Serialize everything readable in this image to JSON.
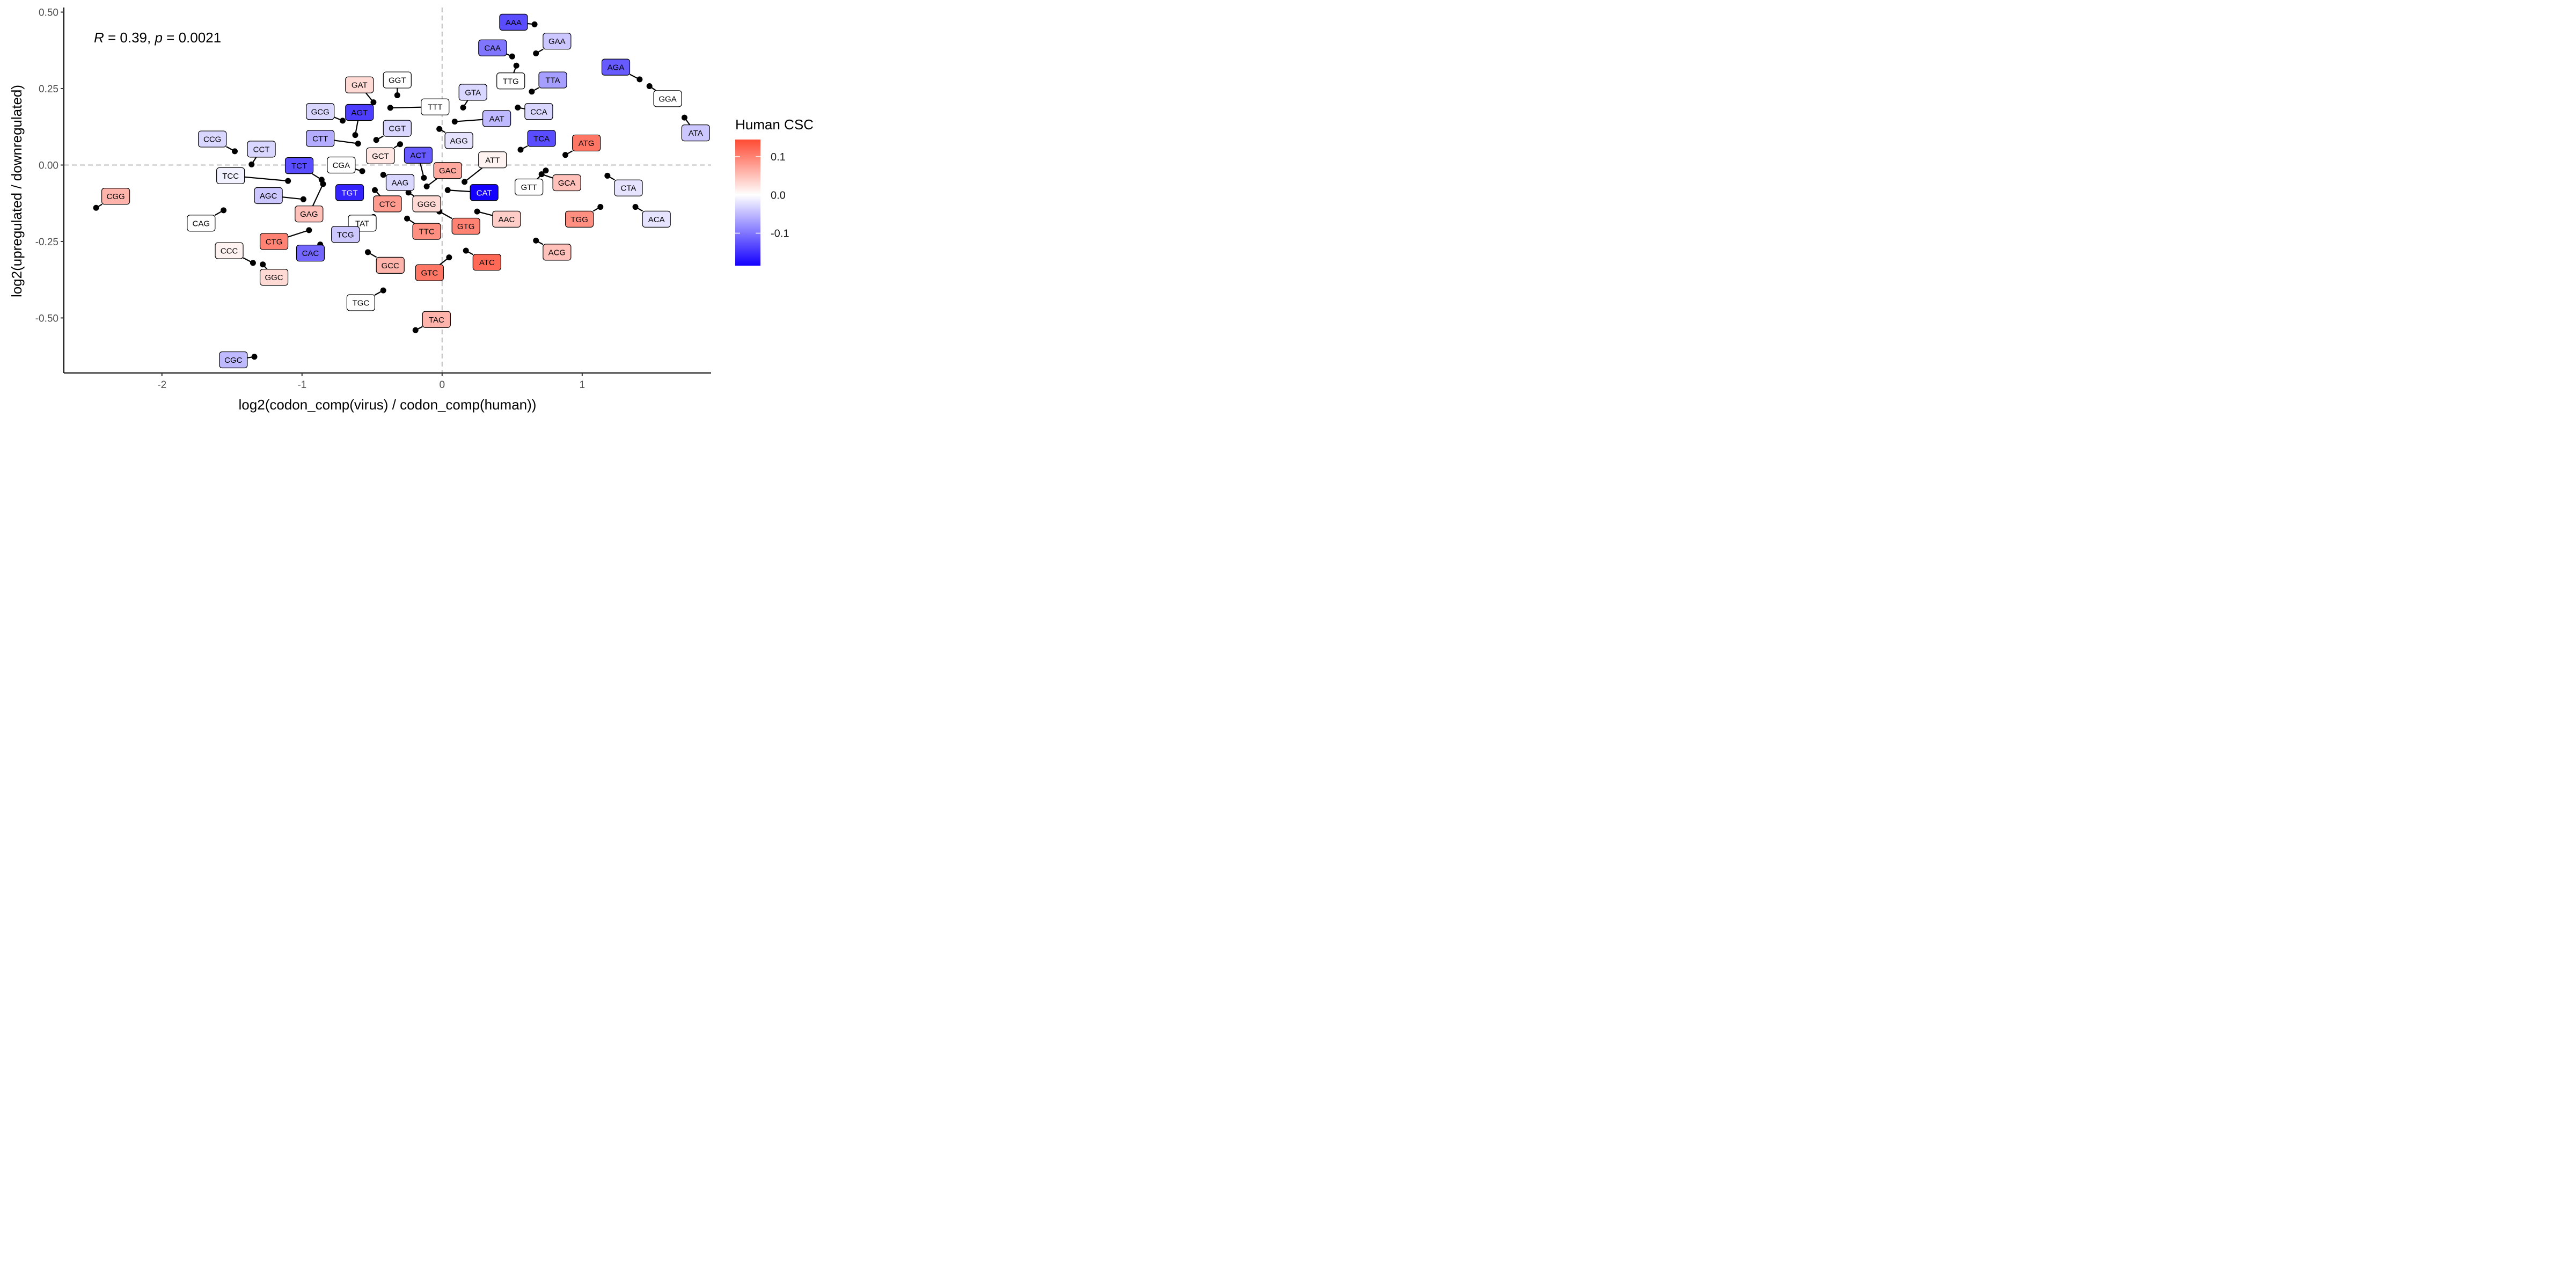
{
  "chart_data": {
    "type": "scatter",
    "xlabel": "log2(codon_comp(virus) / codon_comp(human))",
    "ylabel": "log2(upregulated / downregulated)",
    "annotation": {
      "R_symbol": "R",
      "R_text": " = 0.39, ",
      "p_symbol": "p",
      "p_text": " = 0.0021"
    },
    "xlim": [
      -2.7,
      1.92
    ],
    "ylim": [
      -0.68,
      0.515
    ],
    "x_ticks": [
      {
        "value": -2,
        "label": "-2"
      },
      {
        "value": -1,
        "label": "-1"
      },
      {
        "value": 0,
        "label": "0"
      },
      {
        "value": 1,
        "label": "1"
      }
    ],
    "y_ticks": [
      {
        "value": 0.5,
        "label": "0.50"
      },
      {
        "value": 0.25,
        "label": "0.25"
      },
      {
        "value": 0.0,
        "label": "0.00"
      },
      {
        "value": -0.25,
        "label": "-0.25"
      },
      {
        "value": -0.5,
        "label": "-0.50"
      }
    ],
    "reference_lines": {
      "x": 0,
      "y": 0,
      "style": "dashed"
    },
    "grid": false,
    "legend": {
      "title": "Human CSC",
      "position": "right",
      "colors": {
        "low": "#1400FF",
        "mid": "#FFFFFF",
        "high": "#FF4A33"
      },
      "domain": [
        -0.185,
        0.145
      ],
      "ticks": [
        {
          "value": 0.1,
          "label": "0.1"
        },
        {
          "value": 0.0,
          "label": "0.0"
        },
        {
          "value": -0.1,
          "label": "-0.1"
        }
      ]
    },
    "points": [
      {
        "codon": "AAA",
        "x": 0.66,
        "y": 0.46,
        "csc": -0.13,
        "lx": 0.51,
        "ly": 0.467
      },
      {
        "codon": "GAA",
        "x": 0.67,
        "y": 0.365,
        "csc": -0.04,
        "lx": 0.82,
        "ly": 0.405
      },
      {
        "codon": "CAA",
        "x": 0.5,
        "y": 0.355,
        "csc": -0.1,
        "lx": 0.36,
        "ly": 0.383
      },
      {
        "codon": "TTG",
        "x": 0.53,
        "y": 0.325,
        "csc": 0.0,
        "lx": 0.49,
        "ly": 0.275
      },
      {
        "codon": "TTA",
        "x": 0.64,
        "y": 0.24,
        "csc": -0.07,
        "lx": 0.79,
        "ly": 0.278
      },
      {
        "codon": "AGA",
        "x": 1.41,
        "y": 0.28,
        "csc": -0.12,
        "lx": 1.24,
        "ly": 0.32
      },
      {
        "codon": "GGA",
        "x": 1.48,
        "y": 0.258,
        "csc": 0.0,
        "lx": 1.61,
        "ly": 0.217
      },
      {
        "codon": "ATA",
        "x": 1.73,
        "y": 0.155,
        "csc": -0.04,
        "lx": 1.81,
        "ly": 0.105
      },
      {
        "codon": "GTA",
        "x": 0.15,
        "y": 0.188,
        "csc": -0.03,
        "lx": 0.22,
        "ly": 0.238
      },
      {
        "codon": "CCA",
        "x": 0.54,
        "y": 0.188,
        "csc": -0.03,
        "lx": 0.69,
        "ly": 0.175
      },
      {
        "codon": "AAT",
        "x": 0.09,
        "y": 0.142,
        "csc": -0.05,
        "lx": 0.39,
        "ly": 0.152
      },
      {
        "codon": "TCA",
        "x": 0.56,
        "y": 0.05,
        "csc": -0.13,
        "lx": 0.71,
        "ly": 0.087
      },
      {
        "codon": "ATG",
        "x": 0.88,
        "y": 0.033,
        "csc": 0.11,
        "lx": 1.03,
        "ly": 0.072
      },
      {
        "codon": "ATT",
        "x": 0.16,
        "y": -0.055,
        "csc": 0.01,
        "lx": 0.36,
        "ly": 0.017
      },
      {
        "codon": "GTT",
        "x": 0.74,
        "y": -0.018,
        "csc": 0.0,
        "lx": 0.62,
        "ly": -0.072
      },
      {
        "codon": "GCA",
        "x": 0.71,
        "y": -0.03,
        "csc": 0.05,
        "lx": 0.89,
        "ly": -0.058
      },
      {
        "codon": "CTA",
        "x": 1.18,
        "y": -0.035,
        "csc": -0.02,
        "lx": 1.33,
        "ly": -0.075
      },
      {
        "codon": "TGG",
        "x": 1.13,
        "y": -0.137,
        "csc": 0.09,
        "lx": 0.98,
        "ly": -0.177
      },
      {
        "codon": "ACA",
        "x": 1.38,
        "y": -0.137,
        "csc": -0.02,
        "lx": 1.53,
        "ly": -0.177
      },
      {
        "codon": "CAT",
        "x": 0.04,
        "y": -0.082,
        "csc": -0.185,
        "lx": 0.3,
        "ly": -0.09
      },
      {
        "codon": "AAC",
        "x": 0.25,
        "y": -0.152,
        "csc": 0.04,
        "lx": 0.46,
        "ly": -0.177
      },
      {
        "codon": "ACG",
        "x": 0.67,
        "y": -0.247,
        "csc": 0.05,
        "lx": 0.82,
        "ly": -0.285
      },
      {
        "codon": "ATC",
        "x": 0.17,
        "y": -0.28,
        "csc": 0.12,
        "lx": 0.32,
        "ly": -0.318
      },
      {
        "codon": "GTC",
        "x": 0.05,
        "y": -0.302,
        "csc": 0.11,
        "lx": -0.09,
        "ly": -0.352
      },
      {
        "codon": "TAC",
        "x": -0.19,
        "y": -0.54,
        "csc": 0.06,
        "lx": -0.04,
        "ly": -0.505
      },
      {
        "codon": "GAC",
        "x": -0.11,
        "y": -0.07,
        "csc": 0.07,
        "lx": 0.04,
        "ly": -0.018
      },
      {
        "codon": "ACT",
        "x": -0.13,
        "y": -0.042,
        "csc": -0.12,
        "lx": -0.17,
        "ly": 0.032
      },
      {
        "codon": "AGG",
        "x": -0.02,
        "y": 0.118,
        "csc": -0.02,
        "lx": 0.12,
        "ly": 0.08
      },
      {
        "codon": "TTT",
        "x": -0.37,
        "y": 0.187,
        "csc": 0.0,
        "lx": -0.05,
        "ly": 0.19
      },
      {
        "codon": "GGT",
        "x": -0.32,
        "y": 0.228,
        "csc": 0.0,
        "lx": -0.32,
        "ly": 0.278
      },
      {
        "codon": "CGT",
        "x": -0.47,
        "y": 0.082,
        "csc": -0.03,
        "lx": -0.32,
        "ly": 0.12
      },
      {
        "codon": "GCT",
        "x": -0.3,
        "y": 0.068,
        "csc": 0.02,
        "lx": -0.44,
        "ly": 0.03
      },
      {
        "codon": "GAT",
        "x": -0.49,
        "y": 0.205,
        "csc": 0.03,
        "lx": -0.59,
        "ly": 0.262
      },
      {
        "codon": "AGT",
        "x": -0.62,
        "y": 0.098,
        "csc": -0.14,
        "lx": -0.59,
        "ly": 0.172
      },
      {
        "codon": "GCG",
        "x": -0.71,
        "y": 0.145,
        "csc": -0.03,
        "lx": -0.87,
        "ly": 0.175
      },
      {
        "codon": "CTT",
        "x": -0.6,
        "y": 0.07,
        "csc": -0.06,
        "lx": -0.87,
        "ly": 0.087
      },
      {
        "codon": "CGA",
        "x": -0.57,
        "y": -0.02,
        "csc": 0.0,
        "lx": -0.72,
        "ly": 0.0
      },
      {
        "codon": "AAG",
        "x": -0.42,
        "y": -0.032,
        "csc": -0.03,
        "lx": -0.3,
        "ly": -0.057
      },
      {
        "codon": "GGG",
        "x": -0.24,
        "y": -0.09,
        "csc": 0.03,
        "lx": -0.11,
        "ly": -0.127
      },
      {
        "codon": "CTC",
        "x": -0.48,
        "y": -0.082,
        "csc": 0.08,
        "lx": -0.39,
        "ly": -0.127
      },
      {
        "codon": "TGT",
        "x": -0.66,
        "y": -0.09,
        "csc": -0.16,
        "lx": -0.66,
        "ly": -0.09
      },
      {
        "codon": "TTC",
        "x": -0.25,
        "y": -0.175,
        "csc": 0.09,
        "lx": -0.11,
        "ly": -0.217
      },
      {
        "codon": "GTG",
        "x": -0.02,
        "y": -0.152,
        "csc": 0.1,
        "lx": 0.17,
        "ly": -0.2
      },
      {
        "codon": "TAT",
        "x": -0.49,
        "y": -0.17,
        "csc": 0.0,
        "lx": -0.57,
        "ly": -0.19
      },
      {
        "codon": "TCG",
        "x": -0.61,
        "y": -0.24,
        "csc": -0.04,
        "lx": -0.69,
        "ly": -0.227
      },
      {
        "codon": "GCC",
        "x": -0.53,
        "y": -0.285,
        "csc": 0.06,
        "lx": -0.37,
        "ly": -0.328
      },
      {
        "codon": "TGC",
        "x": -0.42,
        "y": -0.41,
        "csc": 0.0,
        "lx": -0.58,
        "ly": -0.45
      },
      {
        "codon": "TCT",
        "x": -0.86,
        "y": -0.048,
        "csc": -0.13,
        "lx": -1.02,
        "ly": -0.002
      },
      {
        "codon": "GAG",
        "x": -0.85,
        "y": -0.062,
        "csc": 0.05,
        "lx": -0.95,
        "ly": -0.16
      },
      {
        "codon": "TCC",
        "x": -1.1,
        "y": -0.052,
        "csc": -0.01,
        "lx": -1.51,
        "ly": -0.035
      },
      {
        "codon": "AGC",
        "x": -0.99,
        "y": -0.112,
        "csc": -0.04,
        "lx": -1.24,
        "ly": -0.1
      },
      {
        "codon": "CCT",
        "x": -1.36,
        "y": 0.002,
        "csc": -0.03,
        "lx": -1.29,
        "ly": 0.052
      },
      {
        "codon": "CCG",
        "x": -1.48,
        "y": 0.045,
        "csc": -0.03,
        "lx": -1.64,
        "ly": 0.085
      },
      {
        "codon": "CAG",
        "x": -1.56,
        "y": -0.148,
        "csc": 0.0,
        "lx": -1.72,
        "ly": -0.19
      },
      {
        "codon": "CGG",
        "x": -2.47,
        "y": -0.14,
        "csc": 0.06,
        "lx": -2.33,
        "ly": -0.102
      },
      {
        "codon": "CTG",
        "x": -0.95,
        "y": -0.213,
        "csc": 0.1,
        "lx": -1.2,
        "ly": -0.25
      },
      {
        "codon": "CAC",
        "x": -0.87,
        "y": -0.26,
        "csc": -0.11,
        "lx": -0.94,
        "ly": -0.288
      },
      {
        "codon": "CCC",
        "x": -1.35,
        "y": -0.32,
        "csc": 0.01,
        "lx": -1.52,
        "ly": -0.28
      },
      {
        "codon": "GGC",
        "x": -1.28,
        "y": -0.325,
        "csc": 0.03,
        "lx": -1.2,
        "ly": -0.367
      },
      {
        "codon": "CGC",
        "x": -1.34,
        "y": -0.627,
        "csc": -0.05,
        "lx": -1.49,
        "ly": -0.637
      }
    ]
  }
}
